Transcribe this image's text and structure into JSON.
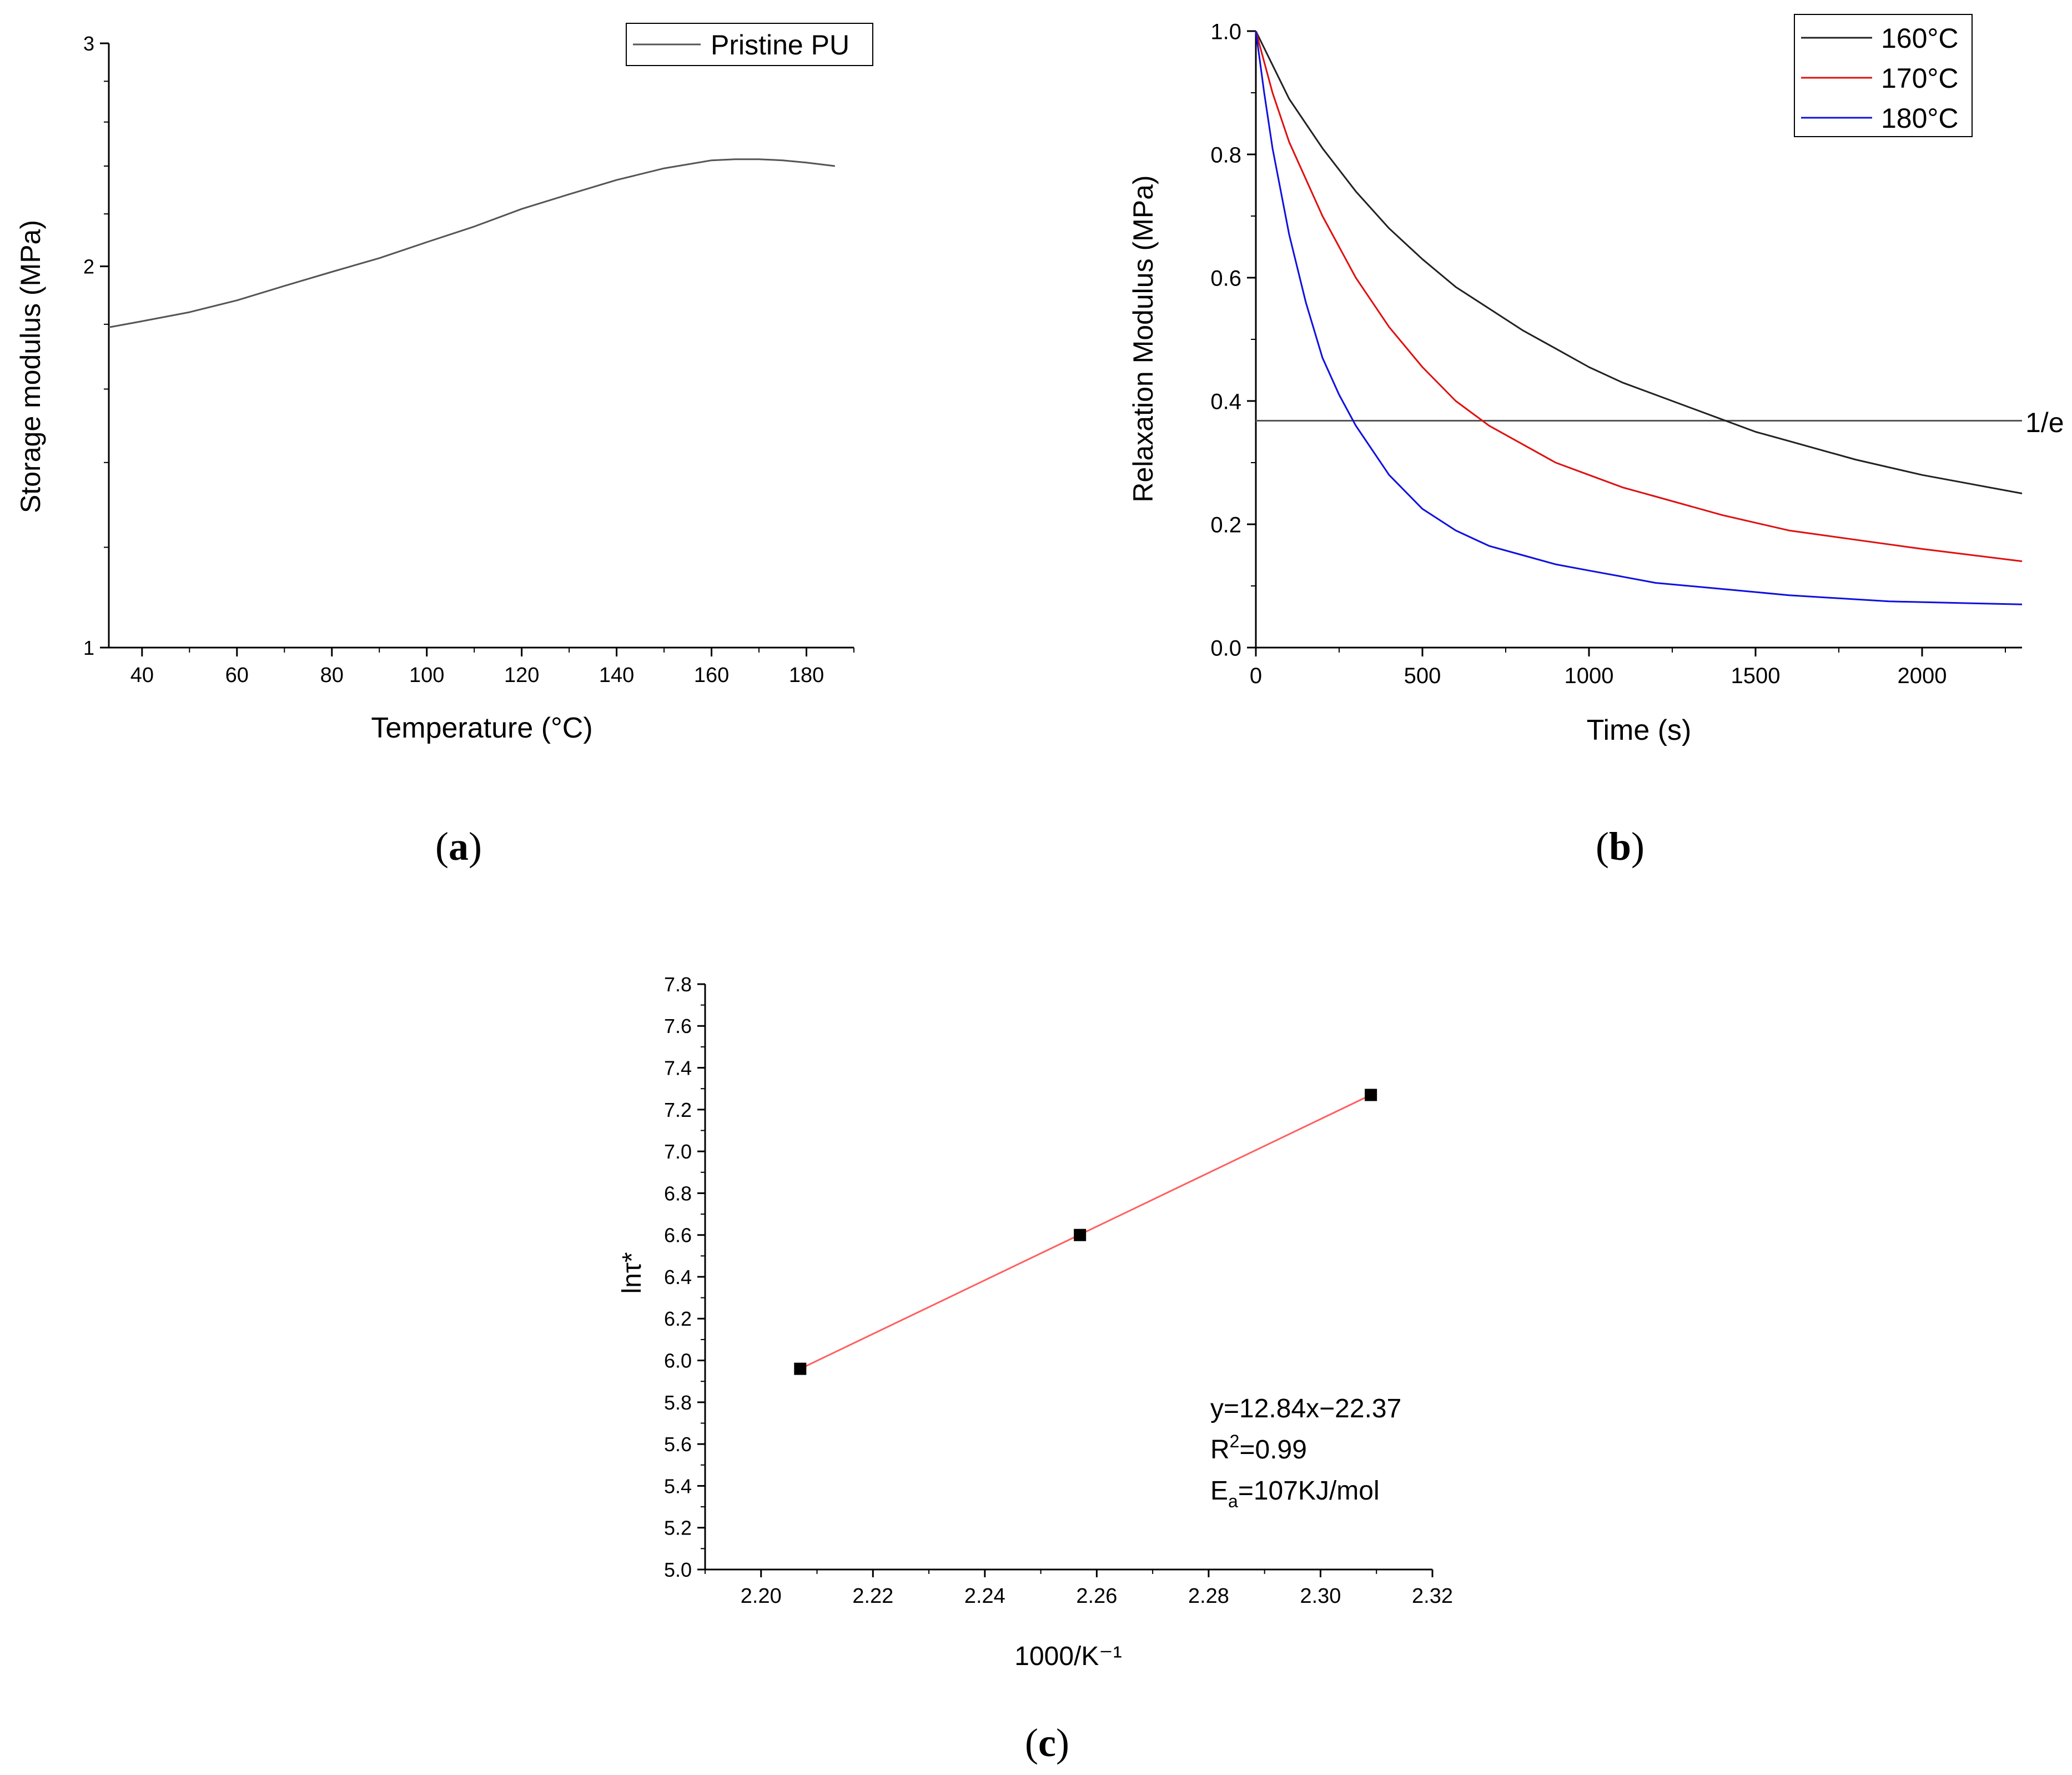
{
  "chart_data": [
    {
      "panel": "a",
      "panel_label": "a",
      "type": "line",
      "xlabel": "Temperature (°C)",
      "ylabel": "Storage modulus (MPa)",
      "xlim": [
        33,
        190
      ],
      "ylim": [
        1,
        3
      ],
      "yscale": "log",
      "xticks": [
        40,
        60,
        80,
        100,
        120,
        140,
        160,
        180
      ],
      "yticks": [
        1,
        2,
        3
      ],
      "legend_position": "top-right",
      "series": [
        {
          "name": "Pristine PU",
          "color": "#555555",
          "x": [
            33,
            40,
            50,
            60,
            70,
            80,
            90,
            100,
            110,
            120,
            130,
            140,
            150,
            160,
            165,
            170,
            175,
            180,
            186
          ],
          "y": [
            1.79,
            1.81,
            1.84,
            1.88,
            1.93,
            1.98,
            2.03,
            2.09,
            2.15,
            2.22,
            2.28,
            2.34,
            2.39,
            2.425,
            2.43,
            2.43,
            2.425,
            2.415,
            2.4
          ]
        }
      ]
    },
    {
      "panel": "b",
      "panel_label": "b",
      "type": "line",
      "xlabel": "Time (s)",
      "ylabel": "Relaxation Modulus (MPa)",
      "xlim": [
        0,
        2300
      ],
      "ylim": [
        0,
        1
      ],
      "xticks": [
        0,
        500,
        1000,
        1500,
        2000
      ],
      "yticks": [
        0.0,
        0.2,
        0.4,
        0.6,
        0.8,
        1.0
      ],
      "legend_position": "top-right",
      "reference_line": {
        "label": "1/e",
        "y": 0.368,
        "color": "#555555"
      },
      "series": [
        {
          "name": "160°C",
          "color": "#222222",
          "x": [
            0,
            100,
            200,
            300,
            400,
            500,
            600,
            700,
            800,
            900,
            1000,
            1100,
            1200,
            1300,
            1400,
            1500,
            1600,
            1800,
            2000,
            2300
          ],
          "y": [
            1.0,
            0.89,
            0.81,
            0.74,
            0.68,
            0.63,
            0.585,
            0.55,
            0.515,
            0.485,
            0.455,
            0.43,
            0.41,
            0.39,
            0.37,
            0.35,
            0.335,
            0.305,
            0.28,
            0.25
          ]
        },
        {
          "name": "170°C",
          "color": "#e01010",
          "x": [
            0,
            50,
            100,
            200,
            300,
            400,
            500,
            600,
            700,
            800,
            900,
            1000,
            1100,
            1200,
            1400,
            1600,
            1800,
            2000,
            2300
          ],
          "y": [
            1.0,
            0.9,
            0.82,
            0.7,
            0.6,
            0.52,
            0.455,
            0.4,
            0.36,
            0.33,
            0.3,
            0.28,
            0.26,
            0.245,
            0.215,
            0.19,
            0.175,
            0.16,
            0.14
          ]
        },
        {
          "name": "180°C",
          "color": "#1010e0",
          "x": [
            0,
            25,
            50,
            100,
            150,
            200,
            250,
            300,
            400,
            500,
            600,
            700,
            800,
            900,
            1000,
            1100,
            1200,
            1400,
            1600,
            1900,
            2300
          ],
          "y": [
            1.0,
            0.9,
            0.81,
            0.67,
            0.56,
            0.47,
            0.41,
            0.36,
            0.28,
            0.225,
            0.19,
            0.165,
            0.15,
            0.135,
            0.125,
            0.115,
            0.105,
            0.095,
            0.085,
            0.075,
            0.07
          ]
        }
      ]
    },
    {
      "panel": "c",
      "panel_label": "c",
      "type": "scatter",
      "xlabel": "1000/K⁻¹",
      "ylabel": "lnτ*",
      "xlim": [
        2.19,
        2.32
      ],
      "ylim": [
        5.0,
        7.8
      ],
      "xticks": [
        2.2,
        2.22,
        2.24,
        2.26,
        2.28,
        2.3,
        2.32
      ],
      "xtick_labels": [
        "2.20",
        "2.22",
        "2.24",
        "2.26",
        "2.28",
        "2.30",
        "2.32"
      ],
      "yticks": [
        5.0,
        5.2,
        5.4,
        5.6,
        5.8,
        6.0,
        6.2,
        6.4,
        6.6,
        6.8,
        7.0,
        7.2,
        7.4,
        7.6,
        7.8
      ],
      "ytick_labels": [
        "5.0",
        "5.2",
        "5.4",
        "5.6",
        "5.8",
        "6.0",
        "6.2",
        "6.4",
        "6.6",
        "6.8",
        "7.0",
        "7.2",
        "7.4",
        "7.6",
        "7.8"
      ],
      "points": {
        "x": [
          2.207,
          2.257,
          2.309
        ],
        "y": [
          5.96,
          6.6,
          7.27
        ],
        "color": "#000000"
      },
      "fit_line": {
        "x": [
          2.207,
          2.309
        ],
        "y": [
          5.96,
          7.27
        ],
        "color": "#ff6060"
      },
      "annotations": {
        "equation": "y=12.84x−22.37",
        "r2_label": "R",
        "r2_sup": "2",
        "r2_value": "=0.99",
        "ea_label": "E",
        "ea_sub": "a",
        "ea_value": "=107KJ/mol"
      }
    }
  ]
}
